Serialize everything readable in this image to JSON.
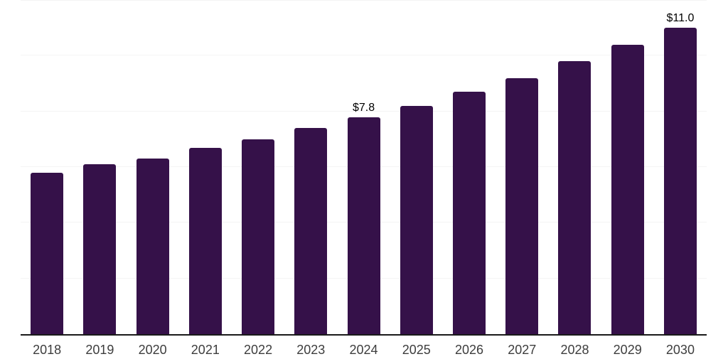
{
  "chart_data": {
    "type": "bar",
    "categories": [
      "2018",
      "2019",
      "2020",
      "2021",
      "2022",
      "2023",
      "2024",
      "2025",
      "2026",
      "2027",
      "2028",
      "2029",
      "2030"
    ],
    "values": [
      5.8,
      6.1,
      6.3,
      6.7,
      7.0,
      7.4,
      7.8,
      8.2,
      8.7,
      9.2,
      9.8,
      10.4,
      11.0
    ],
    "bar_value_labels": [
      "",
      "",
      "",
      "",
      "",
      "",
      "$7.8",
      "",
      "",
      "",
      "",
      "",
      "$11.0"
    ],
    "ylim": [
      0,
      12
    ],
    "gridline_step": 2,
    "grid": true,
    "legend": "none",
    "y_axis_tick_labels_visible": false,
    "colors": {
      "bar_fill": "#351149",
      "axis_line": "#1a1a1a",
      "gridline": "#f4f4f4",
      "year_label": "#3d3d3d",
      "value_label": "#000000",
      "background": "#ffffff"
    }
  }
}
